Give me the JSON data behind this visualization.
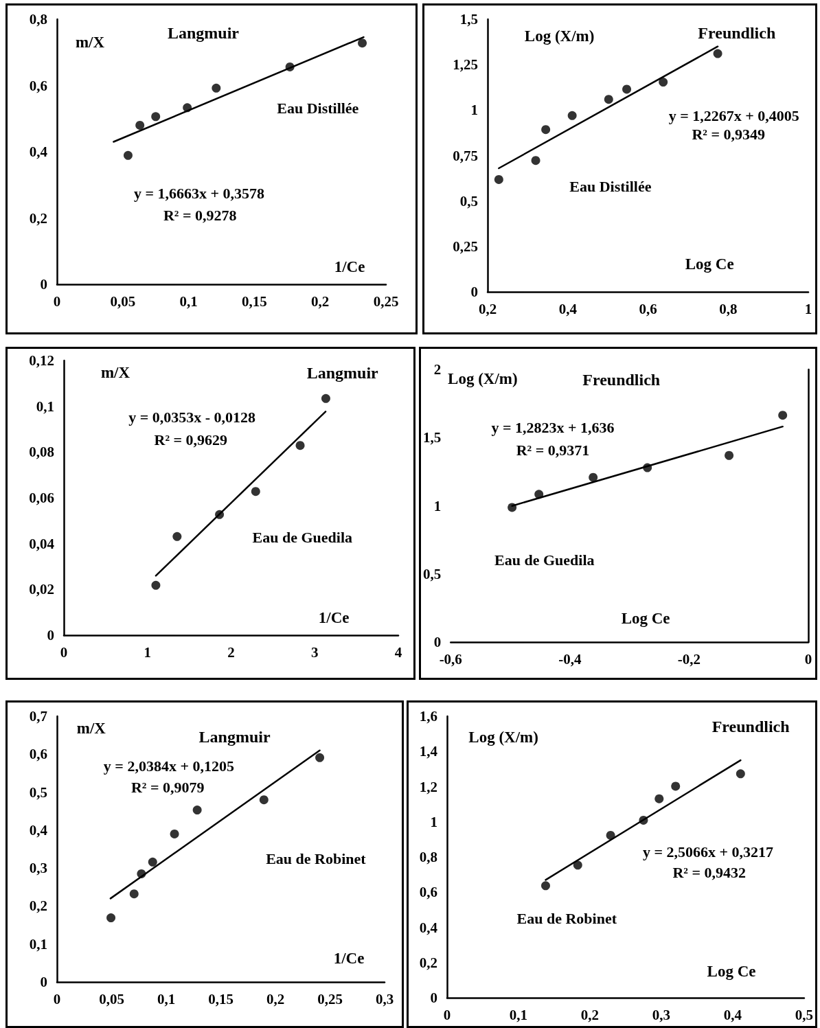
{
  "chart_data": [
    {
      "type": "scatter",
      "title": "Langmuir",
      "ylabel": "m/X",
      "xlabel": "1/Ce",
      "annotations": [
        "Eau Distillée",
        "y = 1,6663x + 0,3578",
        "R² = 0,9278"
      ],
      "xlim": [
        0,
        0.25
      ],
      "xticks": [
        0,
        {
          "value": 0.05,
          "label": "0,05"
        },
        {
          "value": 0.1,
          "label": "0,1"
        },
        {
          "value": 0.15,
          "label": "0,15"
        },
        {
          "value": 0.2,
          "label": "0,2"
        },
        {
          "value": 0.25,
          "label": "0,25"
        }
      ],
      "ylim": [
        0,
        0.8
      ],
      "yticks": [
        0,
        {
          "value": 0.2,
          "label": "0,2"
        },
        {
          "value": 0.4,
          "label": "0,4"
        },
        {
          "value": 0.6,
          "label": "0,6"
        },
        {
          "value": 0.8,
          "label": "0,8"
        }
      ],
      "grid": false,
      "series": [
        {
          "type": "scatter",
          "color": "#000000",
          "marker": "circle",
          "x": [
            0.054,
            0.063,
            0.075,
            0.099,
            0.121,
            0.177,
            0.232
          ],
          "values": [
            0.389,
            0.48,
            0.506,
            0.533,
            0.592,
            0.656,
            0.728
          ]
        },
        {
          "type": "line",
          "color": "#000000",
          "marker": "none",
          "x": [
            0.043,
            0.233
          ],
          "values": [
            0.43,
            0.746
          ]
        }
      ]
    },
    {
      "type": "scatter",
      "title": "Freundlich",
      "ylabel": "Log (X/m)",
      "xlabel": "Log Ce",
      "annotations": [
        "Eau Distillée",
        "y = 1,2267x + 0,4005",
        "R² = 0,9349"
      ],
      "xlim": [
        0.2,
        1
      ],
      "xticks": [
        {
          "value": 0.2,
          "label": "0,2"
        },
        {
          "value": 0.4,
          "label": "0,4"
        },
        {
          "value": 0.6,
          "label": "0,6"
        },
        {
          "value": 0.8,
          "label": "0,8"
        },
        1
      ],
      "ylim": [
        0,
        1.5
      ],
      "yticks": [
        0,
        {
          "value": 0.25,
          "label": "0,25"
        },
        {
          "value": 0.5,
          "label": "0,5"
        },
        {
          "value": 0.75,
          "label": "0,75"
        },
        1,
        {
          "value": 1.25,
          "label": "1,25"
        },
        {
          "value": 1.5,
          "label": "1,5"
        }
      ],
      "grid": false,
      "series": [
        {
          "type": "scatter",
          "color": "#000000",
          "marker": "circle",
          "x": [
            0.228,
            0.32,
            0.345,
            0.411,
            0.502,
            0.547,
            0.638,
            0.774
          ],
          "values": [
            0.618,
            0.723,
            0.893,
            0.97,
            1.059,
            1.115,
            1.154,
            1.311
          ]
        },
        {
          "type": "line",
          "color": "#000000",
          "marker": "none",
          "x": [
            0.228,
            0.774
          ],
          "values": [
            0.68,
            1.35
          ]
        }
      ]
    },
    {
      "type": "scatter",
      "title": "Langmuir",
      "ylabel": "m/X",
      "xlabel": "1/Ce",
      "annotations": [
        "Eau de Guedila",
        "y = 0,0353x - 0,0128",
        "R² = 0,9629"
      ],
      "xlim": [
        0,
        4
      ],
      "xticks": [
        0,
        1,
        2,
        3,
        4
      ],
      "ylim": [
        0,
        0.12
      ],
      "yticks": [
        0,
        {
          "value": 0.02,
          "label": "0,02"
        },
        {
          "value": 0.04,
          "label": "0,04"
        },
        {
          "value": 0.06,
          "label": "0,06"
        },
        {
          "value": 0.08,
          "label": "0,08"
        },
        {
          "value": 0.1,
          "label": "0,1"
        },
        {
          "value": 0.12,
          "label": "0,12"
        }
      ],
      "grid": false,
      "series": [
        {
          "type": "scatter",
          "color": "#000000",
          "marker": "circle",
          "x": [
            1.1,
            1.354,
            1.861,
            2.294,
            2.826,
            3.133
          ],
          "values": [
            0.0218,
            0.0431,
            0.0527,
            0.0628,
            0.0829,
            0.1034
          ]
        },
        {
          "type": "line",
          "color": "#000000",
          "marker": "none",
          "x": [
            1.1,
            3.13
          ],
          "values": [
            0.026,
            0.0977
          ]
        }
      ]
    },
    {
      "type": "scatter",
      "title": "Freundlich",
      "ylabel": "Log (X/m)",
      "xlabel": "Log Ce",
      "annotations": [
        "Eau de Guedila",
        "y = 1,2823x + 1,636",
        "R² = 0,9371"
      ],
      "xlim": [
        -0.6,
        0
      ],
      "xticks": [
        {
          "value": -0.6,
          "label": "-0,6"
        },
        {
          "value": -0.4,
          "label": "-0,4"
        },
        {
          "value": -0.2,
          "label": "-0,2"
        },
        0
      ],
      "ylim": [
        0,
        2
      ],
      "yticks": [
        0,
        {
          "value": 0.5,
          "label": "0,5"
        },
        1,
        {
          "value": 1.5,
          "label": "1,5"
        },
        2
      ],
      "grid": false,
      "series": [
        {
          "type": "scatter",
          "color": "#000000",
          "marker": "circle",
          "x": [
            -0.497,
            -0.452,
            -0.361,
            -0.27,
            -0.133,
            -0.043
          ],
          "values": [
            0.988,
            1.084,
            1.208,
            1.279,
            1.369,
            1.664
          ]
        },
        {
          "type": "line",
          "color": "#000000",
          "marker": "none",
          "x": [
            -0.497,
            -0.043
          ],
          "values": [
            0.999,
            1.581
          ]
        }
      ]
    },
    {
      "type": "scatter",
      "title": "Langmuir",
      "ylabel": "m/X",
      "xlabel": "1/Ce",
      "annotations": [
        "Eau de Robinet",
        "y = 2,0384x + 0,1205",
        "R² = 0,9079"
      ],
      "xlim": [
        0,
        0.3
      ],
      "xticks": [
        0,
        {
          "value": 0.05,
          "label": "0,05"
        },
        {
          "value": 0.1,
          "label": "0,1"
        },
        {
          "value": 0.15,
          "label": "0,15"
        },
        {
          "value": 0.2,
          "label": "0,2"
        },
        {
          "value": 0.25,
          "label": "0,25"
        },
        {
          "value": 0.3,
          "label": "0,3"
        }
      ],
      "ylim": [
        0,
        0.7
      ],
      "yticks": [
        0,
        {
          "value": 0.1,
          "label": "0,1"
        },
        {
          "value": 0.2,
          "label": "0,2"
        },
        {
          "value": 0.3,
          "label": "0,3"
        },
        {
          "value": 0.4,
          "label": "0,4"
        },
        {
          "value": 0.5,
          "label": "0,5"
        },
        {
          "value": 0.6,
          "label": "0,6"
        },
        {
          "value": 0.7,
          "label": "0,7"
        }
      ],
      "grid": false,
      "series": [
        {
          "type": "scatter",
          "color": "#000000",
          "marker": "circle",
          "x": [
            0.0494,
            0.0706,
            0.0773,
            0.0876,
            0.1076,
            0.1284,
            0.1895,
            0.2406
          ],
          "values": [
            0.169,
            0.232,
            0.285,
            0.316,
            0.39,
            0.453,
            0.48,
            0.591
          ]
        },
        {
          "type": "line",
          "color": "#000000",
          "marker": "none",
          "x": [
            0.049,
            0.2406
          ],
          "values": [
            0.22,
            0.61
          ]
        }
      ]
    },
    {
      "type": "scatter",
      "title": "Freundlich",
      "ylabel": "Log (X/m)",
      "xlabel": "Log Ce",
      "annotations": [
        "Eau de Robinet",
        "y = 2,5066x + 0,3217",
        "R² = 0,9432"
      ],
      "xlim": [
        0,
        0.5
      ],
      "xticks": [
        0,
        {
          "value": 0.1,
          "label": "0,1"
        },
        {
          "value": 0.2,
          "label": "0,2"
        },
        {
          "value": 0.3,
          "label": "0,3"
        },
        {
          "value": 0.4,
          "label": "0,4"
        },
        {
          "value": 0.5,
          "label": "0,5"
        }
      ],
      "ylim": [
        0,
        1.6
      ],
      "yticks": [
        0,
        {
          "value": 0.2,
          "label": "0,2"
        },
        {
          "value": 0.4,
          "label": "0,4"
        },
        {
          "value": 0.6,
          "label": "0,6"
        },
        {
          "value": 0.8,
          "label": "0,8"
        },
        1,
        {
          "value": 1.2,
          "label": "1,2"
        },
        {
          "value": 1.4,
          "label": "1,4"
        },
        {
          "value": 1.6,
          "label": "1,6"
        }
      ],
      "grid": false,
      "series": [
        {
          "type": "scatter",
          "color": "#000000",
          "marker": "circle",
          "x": [
            0.138,
            0.183,
            0.229,
            0.275,
            0.297,
            0.32,
            0.411
          ],
          "values": [
            0.637,
            0.754,
            0.923,
            1.009,
            1.131,
            1.202,
            1.273
          ]
        },
        {
          "type": "line",
          "color": "#000000",
          "marker": "none",
          "x": [
            0.138,
            0.411
          ],
          "values": [
            0.67,
            1.35
          ]
        }
      ]
    }
  ]
}
